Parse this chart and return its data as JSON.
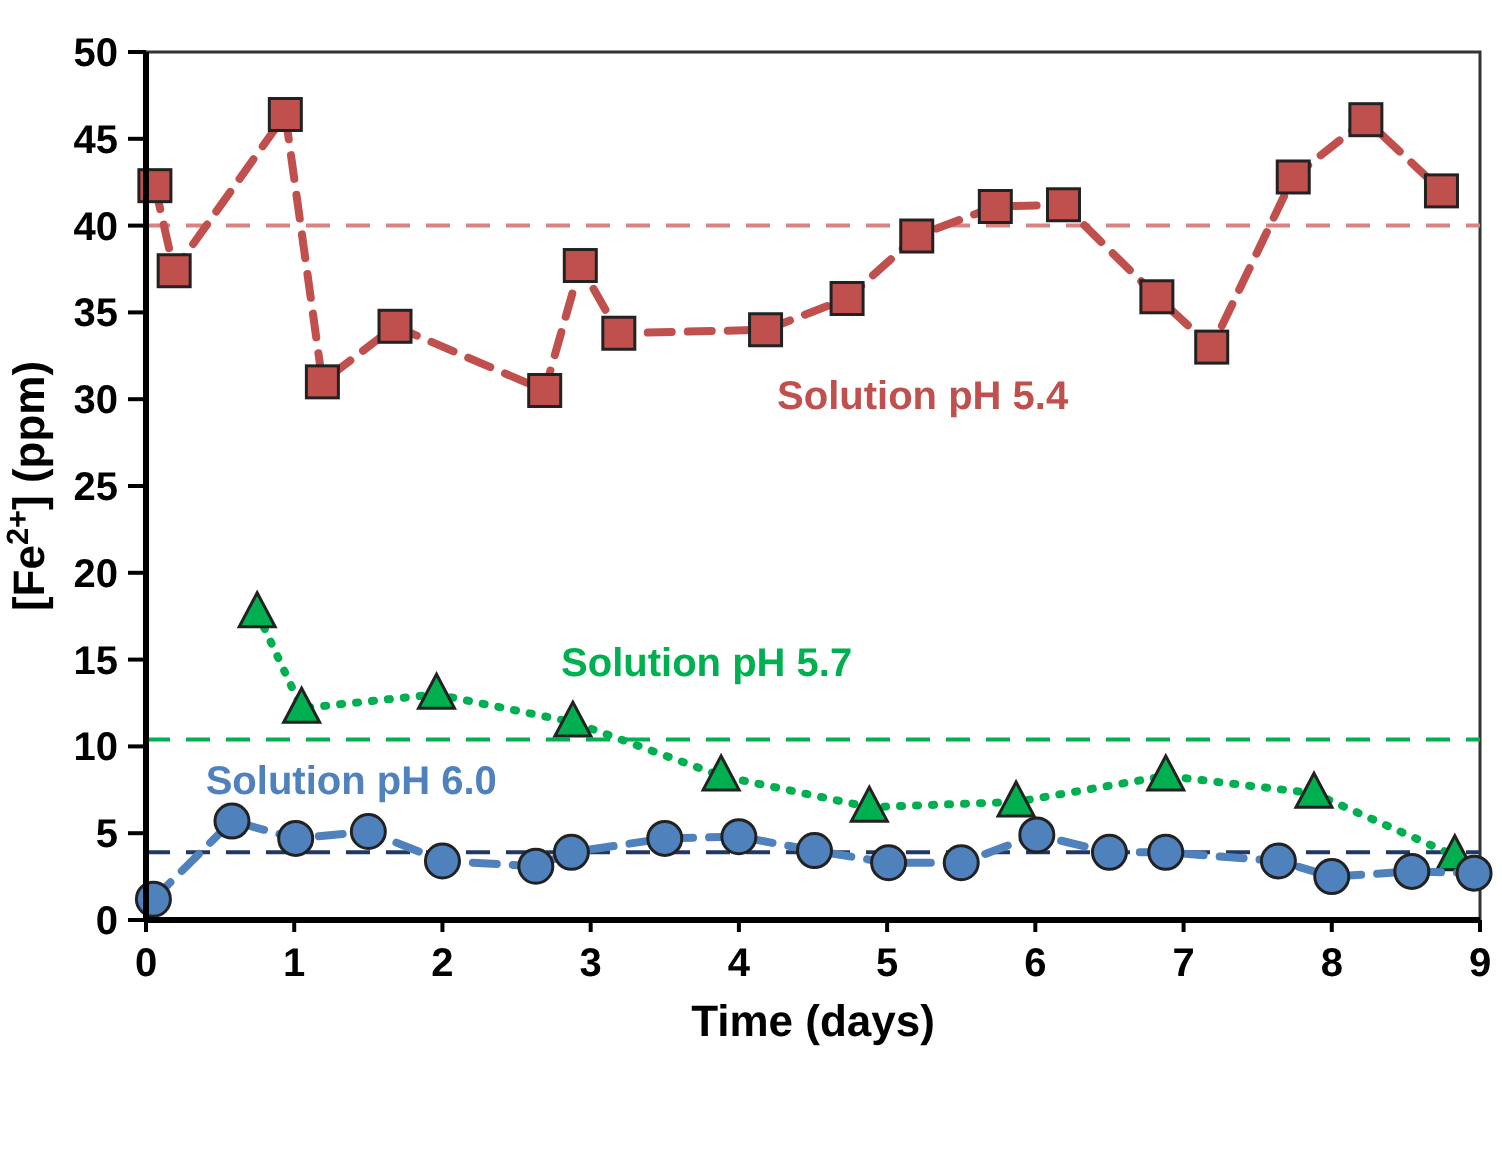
{
  "chart_data": {
    "type": "line",
    "xlabel": "Time (days)",
    "ylabel": "[Fe$^{2+}$] (ppm)",
    "xlim": [
      0,
      9
    ],
    "xticks": [
      0,
      1,
      2,
      3,
      4,
      5,
      6,
      7,
      8,
      9
    ],
    "ylim": [
      0,
      50
    ],
    "yticks": [
      0,
      5,
      10,
      15,
      20,
      25,
      30,
      35,
      40,
      45,
      50
    ],
    "grid": false,
    "series": [
      {
        "name": "Solution pH 5.4",
        "color": "#c0504d",
        "marker": "square",
        "line_style": "dashed",
        "x": [
          0.06,
          0.19,
          0.94,
          1.19,
          1.68,
          2.69,
          2.93,
          3.19,
          4.18,
          4.73,
          5.2,
          5.73,
          6.19,
          6.82,
          7.19,
          7.74,
          8.23,
          8.74
        ],
        "values": [
          42.3,
          37.4,
          46.4,
          31.0,
          34.2,
          30.5,
          37.7,
          33.8,
          34.0,
          35.8,
          39.4,
          41.1,
          41.2,
          35.9,
          33.0,
          42.8,
          46.1,
          42.0
        ]
      },
      {
        "name": "Solution pH 5.7",
        "color": "#00b050",
        "marker": "triangle",
        "line_style": "dotted",
        "x": [
          0.75,
          1.05,
          1.96,
          2.88,
          3.88,
          4.88,
          5.87,
          6.88,
          7.88,
          8.83
        ],
        "values": [
          17.7,
          12.2,
          13.0,
          11.4,
          8.3,
          6.5,
          6.8,
          8.3,
          7.3,
          3.7
        ]
      },
      {
        "name": "Solution pH 6.0",
        "color": "#4f81bd",
        "marker": "circle",
        "line_style": "dashed",
        "x": [
          0.05,
          0.58,
          1.01,
          1.5,
          2.0,
          2.63,
          2.87,
          3.5,
          4.0,
          4.51,
          5.01,
          5.5,
          6.01,
          6.5,
          6.88,
          7.64,
          8.0,
          8.54,
          8.96
        ],
        "values": [
          1.2,
          5.7,
          4.7,
          5.1,
          3.4,
          3.1,
          3.9,
          4.7,
          4.8,
          4.0,
          3.3,
          3.3,
          4.9,
          3.9,
          3.9,
          3.4,
          2.5,
          2.8,
          2.7
        ]
      }
    ],
    "ref_lines": [
      {
        "axis": "y",
        "value": 40,
        "color": "#d9827f",
        "line_style": "dashed"
      },
      {
        "axis": "y",
        "value": 10.4,
        "color": "#00b050",
        "line_style": "dashed"
      },
      {
        "axis": "y",
        "value": 3.9,
        "color": "#1f3864",
        "line_style": "dashed"
      }
    ]
  }
}
